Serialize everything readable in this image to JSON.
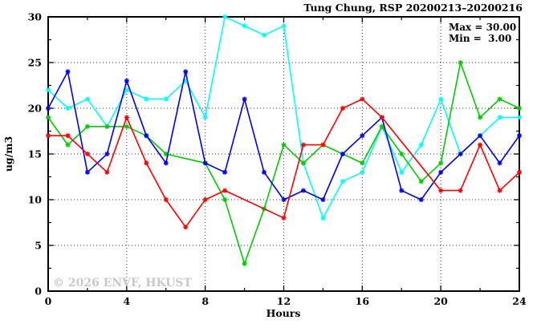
{
  "title": "Tung Chung, RSP 20200213–20200216",
  "legend": {
    "max_label": "Max = 30.00",
    "min_label": "Min =  3.00"
  },
  "watermark": "© 2026 ENVF, HKUST",
  "chart_data": {
    "type": "line",
    "title": "Tung Chung, RSP 20200213–20200216",
    "xlabel": "Hours",
    "ylabel": "ug/m3",
    "xlim": [
      0,
      24
    ],
    "ylim": [
      0,
      30
    ],
    "x_major_ticks": [
      0,
      4,
      8,
      12,
      16,
      20,
      24
    ],
    "x_minor_step": 2,
    "y_major_ticks": [
      0,
      5,
      10,
      15,
      20,
      25,
      30
    ],
    "y_minor_step": 2.5,
    "grid": true,
    "legend_position": "top-right",
    "max_value": 30.0,
    "min_value": 3.0,
    "x": [
      0,
      1,
      2,
      3,
      4,
      5,
      6,
      7,
      8,
      9,
      10,
      11,
      12,
      13,
      14,
      15,
      16,
      17,
      18,
      19,
      20,
      21,
      22,
      23,
      24
    ],
    "series": [
      {
        "name": "cyan-series",
        "color": "#00ffff",
        "values": [
          22,
          20,
          21,
          18,
          22,
          21,
          21,
          23,
          19,
          30,
          29,
          28,
          29,
          14,
          8,
          12,
          13,
          18,
          13,
          16,
          21,
          15,
          17,
          19,
          19
        ]
      },
      {
        "name": "green-series",
        "color": "#00cc00",
        "values": [
          19,
          16,
          18,
          18,
          18,
          17,
          15,
          null,
          14,
          10,
          3,
          9,
          16,
          14,
          16,
          15,
          14,
          18,
          15,
          12,
          14,
          25,
          19,
          21,
          20
        ]
      },
      {
        "name": "blue-series",
        "color": "#0000ee",
        "values": [
          20,
          24,
          13,
          15,
          23,
          17,
          14,
          24,
          14,
          13,
          21,
          13,
          10,
          11,
          10,
          15,
          17,
          19,
          11,
          10,
          13,
          15,
          17,
          14,
          17
        ]
      },
      {
        "name": "red-series",
        "color": "#ff0000",
        "values": [
          17,
          17,
          15,
          13,
          19,
          14,
          10,
          7,
          10,
          11,
          null,
          null,
          8,
          16,
          16,
          20,
          21,
          19,
          null,
          null,
          11,
          11,
          16,
          11,
          13
        ]
      }
    ]
  }
}
